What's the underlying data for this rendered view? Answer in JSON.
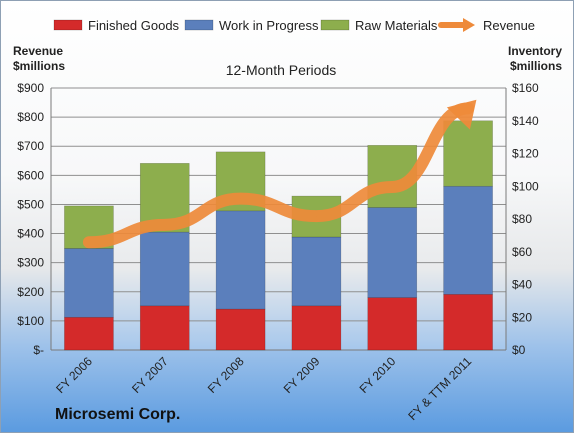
{
  "chart_data": {
    "type": "bar",
    "stacked": true,
    "title": "12-Month Periods",
    "company": "Microsemi Corp.",
    "ylabel_left": [
      "Revenue",
      "$millions"
    ],
    "ylabel_right": [
      "Inventory",
      "$millions"
    ],
    "ylim_left": [
      0,
      900
    ],
    "ylim_right": [
      0,
      160
    ],
    "yticks_left": [
      "$-",
      "$100",
      "$200",
      "$300",
      "$400",
      "$500",
      "$600",
      "$700",
      "$800",
      "$900"
    ],
    "yticks_right": [
      "$0",
      "$20",
      "$40",
      "$60",
      "$80",
      "$100",
      "$120",
      "$140",
      "$160"
    ],
    "categories": [
      "FY 2006",
      "FY 2007",
      "FY 2008",
      "FY 2009",
      "FY 2010",
      "FY & TTM 2011"
    ],
    "series": [
      {
        "name": "Finished Goods",
        "axis": "right",
        "color": "#d42a2a",
        "values": [
          20,
          27,
          25,
          27,
          32,
          34
        ]
      },
      {
        "name": "Work in Progress",
        "axis": "right",
        "color": "#5b7fbc",
        "values": [
          42,
          45,
          60,
          42,
          55,
          66
        ]
      },
      {
        "name": "Raw Materials",
        "axis": "right",
        "color": "#8dae4d",
        "values": [
          26,
          42,
          36,
          25,
          38,
          40
        ]
      },
      {
        "name": "Revenue",
        "axis": "left",
        "type": "line",
        "color": "#ee8a3a",
        "values": [
          370,
          430,
          520,
          460,
          560,
          830
        ]
      }
    ],
    "grid": true,
    "legend": "top"
  }
}
